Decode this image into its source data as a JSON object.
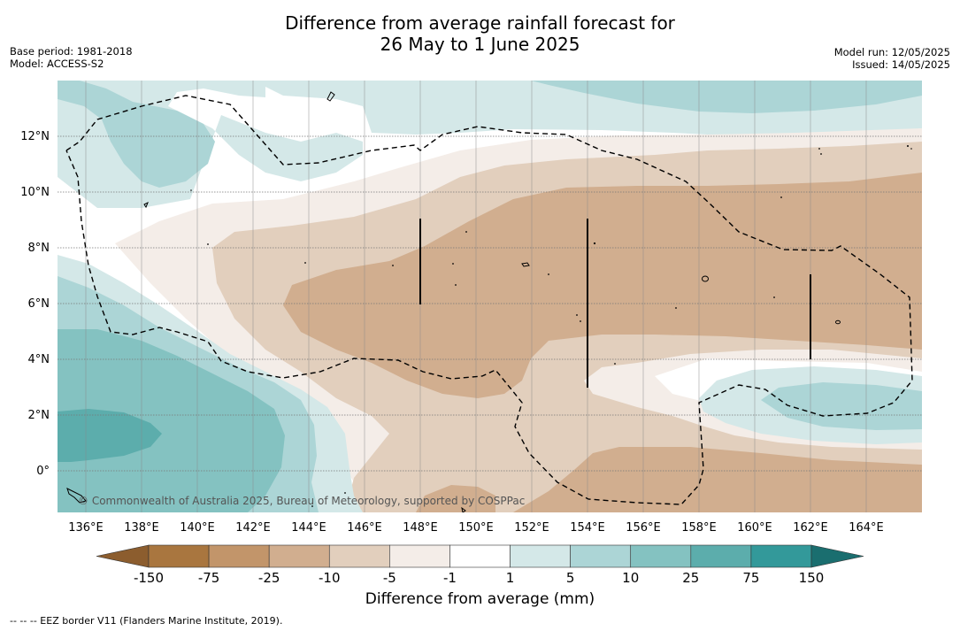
{
  "header": {
    "title_line1": "Difference from average rainfall forecast for",
    "title_line2": "26 May to 1 June 2025",
    "base_period": "Base period: 1981-2018",
    "model": "Model: ACCESS-S2",
    "model_run": "Model run: 12/05/2025",
    "issued": "Issued: 14/05/2025"
  },
  "map": {
    "lon_ticks": [
      "136°E",
      "138°E",
      "140°E",
      "142°E",
      "144°E",
      "146°E",
      "148°E",
      "150°E",
      "152°E",
      "154°E",
      "156°E",
      "158°E",
      "160°E",
      "162°E",
      "164°E"
    ],
    "lat_ticks": [
      "12°N",
      "10°N",
      "8°N",
      "6°N",
      "4°N",
      "2°N",
      "0°"
    ],
    "copyright": "© Commonwealth of Australia 2025, Bureau of Meteorology, supported by COSPPac",
    "palette": {
      "-150": "#a9763f",
      "-75": "#c2956a",
      "-25": "#d1ae8f",
      "-10": "#e2cfbd",
      "-5": "#f4ede8",
      "-1": "#ffffff",
      "1": "#d4e8e8",
      "5": "#acd5d6",
      "10": "#84c2c1",
      "25": "#5cadac",
      "75": "#33999a",
      "150": "#1f7f80"
    }
  },
  "colorbar": {
    "labels": [
      "-150",
      "-75",
      "-25",
      "-10",
      "-5",
      "-1",
      "1",
      "5",
      "10",
      "25",
      "75",
      "150"
    ],
    "colors": [
      "#a9763f",
      "#c2956a",
      "#d1ae8f",
      "#e2cfbd",
      "#f4ede8",
      "#ffffff",
      "#d4e8e8",
      "#acd5d6",
      "#84c2c1",
      "#5cadac",
      "#33999a"
    ],
    "under_color": "#8c5d2e",
    "over_color": "#1a6e6f",
    "title": "Difference from average (mm)"
  },
  "footnote": "--  --  -- EEZ border V11 (Flanders Marine Institute, 2019)."
}
